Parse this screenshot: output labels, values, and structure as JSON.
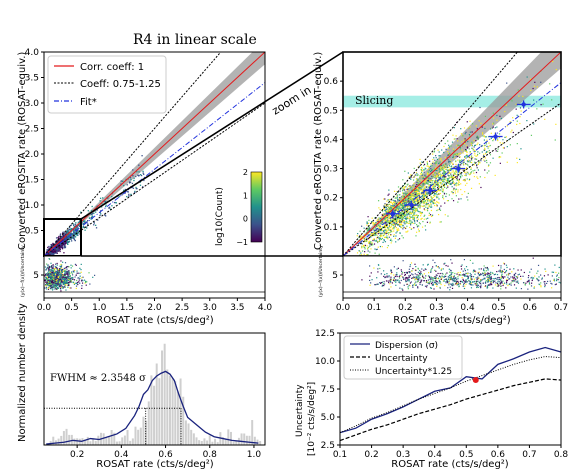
{
  "figure_title": "R4 in linear scale",
  "zoom_label": "zoom in",
  "colors": {
    "corr": "#e41a1c",
    "coeff": "#000000",
    "fit": "#2233dd",
    "band": "#9a9a9a",
    "slicing": "#7fe7dc",
    "dispersion": "#1a237e",
    "marker": "#e41a1c"
  },
  "chart_data": [
    {
      "id": "main",
      "type": "scatter",
      "title": "",
      "xlabel": "",
      "ylabel": "Converted eROSITA rate (ROSAT-equiv.)",
      "xlim": [
        0,
        4
      ],
      "ylim": [
        0,
        4
      ],
      "xticks": [
        "0.0",
        "0.5",
        "1.0",
        "1.5",
        "2.0",
        "2.5",
        "3.0",
        "3.5",
        "4.0"
      ],
      "yticks": [
        "0.5",
        "1.0",
        "1.5",
        "2.0",
        "2.5",
        "3.0",
        "3.5",
        "4.0"
      ],
      "legend": {
        "position": "top-left",
        "entries": [
          "Corr. coeff: 1",
          "Coeff: 0.75-1.25",
          "Fit*"
        ]
      },
      "lines": [
        {
          "name": "Corr. coeff: 1",
          "slope": 1.0,
          "style": "solid"
        },
        {
          "name": "Coeff: 0.75-1.25",
          "slope": 1.25,
          "style": "dotted"
        },
        {
          "name": "Coeff: 0.75-1.25",
          "slope": 0.75,
          "style": "dotted"
        },
        {
          "name": "Fit*",
          "slope": 0.85,
          "style": "dashdot"
        }
      ],
      "colorbar": {
        "label": "log10(Count)",
        "range": [
          -1,
          2
        ],
        "ticks": [
          "2",
          "1",
          "0",
          "−1"
        ]
      }
    },
    {
      "id": "main_residual",
      "type": "scatter",
      "ylabel": "(y(x)−f(x))/Uncertainty",
      "xlim": [
        0,
        4
      ],
      "yticks": [
        "5"
      ],
      "xlabel": "ROSAT rate (cts/s/deg²)",
      "xticks": [
        "0.0",
        "0.5",
        "1.0",
        "1.5",
        "2.0",
        "2.5",
        "3.0",
        "3.5",
        "4.0"
      ]
    },
    {
      "id": "zoom",
      "type": "scatter",
      "ylabel": "Converted eROSITA rate (ROSAT-equiv.)",
      "xlim": [
        0,
        0.7
      ],
      "ylim": [
        0,
        0.7
      ],
      "yticks": [
        "0.1",
        "0.2",
        "0.3",
        "0.4",
        "0.5",
        "0.6"
      ],
      "slicing": {
        "label": "Slicing",
        "y_range": [
          0.51,
          0.55
        ]
      },
      "binned_points": {
        "x": [
          0.16,
          0.22,
          0.28,
          0.37,
          0.49,
          0.58
        ],
        "y": [
          0.145,
          0.175,
          0.225,
          0.3,
          0.41,
          0.52
        ]
      }
    },
    {
      "id": "zoom_residual",
      "type": "scatter",
      "ylabel": "(y(x)−f(x))/Uncertainty",
      "xlim": [
        0,
        0.7
      ],
      "yticks": [
        "5"
      ],
      "xlabel": "ROSAT rate (cts/s/deg²)",
      "xticks": [
        "0.0",
        "0.1",
        "0.2",
        "0.3",
        "0.4",
        "0.5",
        "0.6",
        "0.7"
      ]
    },
    {
      "id": "histogram",
      "type": "line",
      "ylabel": "Normalized number density",
      "xlabel": "ROSAT rate (cts/s/deg²)",
      "xlim": [
        0.05,
        1.05
      ],
      "xticks": [
        "0.2",
        "0.4",
        "0.6",
        "0.8",
        "1.0"
      ],
      "annotation": "FWHM ≈ 2.3548 σ",
      "fwhm_x": [
        0.51,
        0.67
      ],
      "x": [
        0.06,
        0.1,
        0.14,
        0.18,
        0.22,
        0.26,
        0.3,
        0.34,
        0.38,
        0.42,
        0.46,
        0.48,
        0.5,
        0.52,
        0.54,
        0.56,
        0.58,
        0.6,
        0.62,
        0.64,
        0.66,
        0.68,
        0.7,
        0.74,
        0.78,
        0.82,
        0.86,
        0.9,
        0.94,
        0.98,
        1.02
      ],
      "values": [
        0.01,
        0.02,
        0.03,
        0.05,
        0.04,
        0.07,
        0.06,
        0.09,
        0.12,
        0.18,
        0.32,
        0.42,
        0.55,
        0.6,
        0.7,
        0.75,
        0.78,
        0.8,
        0.77,
        0.7,
        0.55,
        0.42,
        0.3,
        0.22,
        0.14,
        0.09,
        0.07,
        0.05,
        0.04,
        0.03,
        0.02
      ]
    },
    {
      "id": "uncertainty",
      "type": "line",
      "ylabel": "Uncertainty [10⁻² cts/s/deg²]",
      "xlabel": "ROSAT rate (cts/s/deg²)",
      "xlim": [
        0.1,
        0.8
      ],
      "ylim": [
        2.5,
        12.5
      ],
      "xticks": [
        "0.1",
        "0.2",
        "0.3",
        "0.4",
        "0.5",
        "0.6",
        "0.7",
        "0.8"
      ],
      "yticks": [
        "2.5",
        "5.0",
        "7.5",
        "10.0",
        "12.5"
      ],
      "legend": {
        "position": "top-left",
        "entries": [
          "Dispersion (σ)",
          "Uncertainty",
          "Uncertainty*1.25"
        ]
      },
      "x": [
        0.1,
        0.15,
        0.2,
        0.25,
        0.3,
        0.35,
        0.4,
        0.45,
        0.5,
        0.55,
        0.6,
        0.65,
        0.7,
        0.75,
        0.8
      ],
      "series": [
        {
          "name": "Dispersion (σ)",
          "values": [
            3.6,
            4.0,
            4.8,
            5.3,
            5.9,
            6.6,
            7.3,
            7.6,
            8.6,
            8.4,
            9.7,
            10.2,
            10.8,
            11.2,
            10.8
          ]
        },
        {
          "name": "Uncertainty",
          "values": [
            2.9,
            3.4,
            3.9,
            4.3,
            4.8,
            5.3,
            5.7,
            6.1,
            6.6,
            7.0,
            7.4,
            7.8,
            8.1,
            8.4,
            8.3
          ]
        },
        {
          "name": "Uncertainty*1.25",
          "values": [
            3.6,
            4.2,
            4.9,
            5.4,
            6.0,
            6.6,
            7.1,
            7.6,
            8.2,
            8.7,
            9.2,
            9.7,
            10.1,
            10.4,
            10.3
          ]
        }
      ],
      "highlight": {
        "x": 0.53,
        "y": 8.3
      }
    }
  ]
}
